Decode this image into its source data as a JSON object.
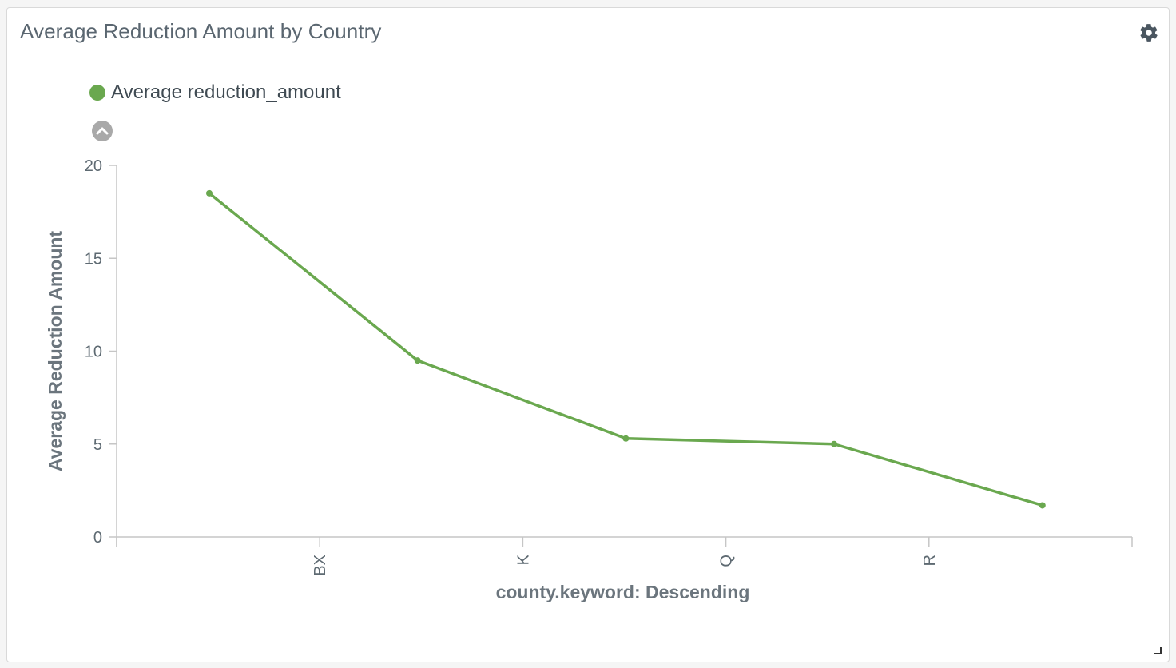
{
  "panel": {
    "title": "Average Reduction Amount by Country",
    "settings_icon": "gear-icon",
    "collapse_icon": "chevron-up-icon",
    "resize_icon": "resize-handle-icon"
  },
  "legend": {
    "label": "Average reduction_amount",
    "color": "#6aa84f"
  },
  "chart_data": {
    "type": "line",
    "title": "Average Reduction Amount by Country",
    "xlabel": "county.keyword: Descending",
    "ylabel": "Average Reduction Amount",
    "categories": [
      "",
      "BX",
      "K",
      "Q",
      "R"
    ],
    "series": [
      {
        "name": "Average reduction_amount",
        "color": "#6aa84f",
        "values": [
          18.5,
          9.5,
          5.3,
          5.0,
          1.7
        ]
      }
    ],
    "ylim": [
      0,
      20
    ],
    "yticks": [
      0,
      5,
      10,
      15,
      20
    ],
    "grid": false,
    "legend_position": "top-left"
  }
}
